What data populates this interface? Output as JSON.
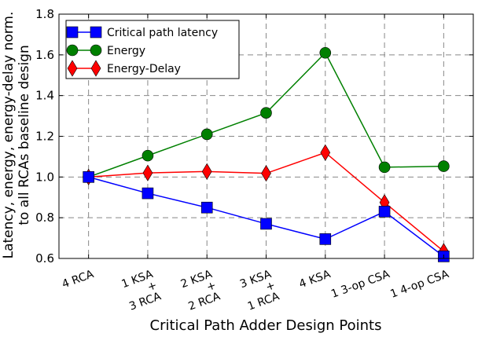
{
  "chart_data": {
    "type": "line",
    "xlabel": "Critical Path Adder Design Points",
    "ylabel_line1": "Latency, energy, energy-delay norm.",
    "ylabel_line2": "to all RCAs baseline design",
    "ylim": [
      0.6,
      1.8
    ],
    "yticks": [
      0.6,
      0.8,
      1.0,
      1.2,
      1.4,
      1.6,
      1.8
    ],
    "ytick_labels": [
      "0.6",
      "0.8",
      "1.0",
      "1.2",
      "1.4",
      "1.6",
      "1.8"
    ],
    "grid": true,
    "legend_position": "top-left",
    "categories": [
      [
        "4 RCA"
      ],
      [
        "1 KSA",
        "+",
        "3 RCA"
      ],
      [
        "2 KSA",
        "+",
        "2 RCA"
      ],
      [
        "3 KSA",
        "+",
        "1 RCA"
      ],
      [
        "4 KSA"
      ],
      [
        "1 3-op CSA"
      ],
      [
        "1 4-op CSA"
      ]
    ],
    "series": [
      {
        "name": "Critical path latency",
        "color": "#0000ff",
        "marker": "square",
        "values": [
          1.0,
          0.92,
          0.85,
          0.77,
          0.695,
          0.83,
          0.61
        ]
      },
      {
        "name": "Energy",
        "color": "#008000",
        "marker": "circle",
        "values": [
          1.0,
          1.105,
          1.21,
          1.315,
          1.61,
          1.048,
          1.053
        ]
      },
      {
        "name": "Energy-Delay",
        "color": "#ff0000",
        "marker": "diamond",
        "values": [
          1.0,
          1.02,
          1.027,
          1.018,
          1.12,
          0.875,
          0.635
        ]
      }
    ]
  }
}
